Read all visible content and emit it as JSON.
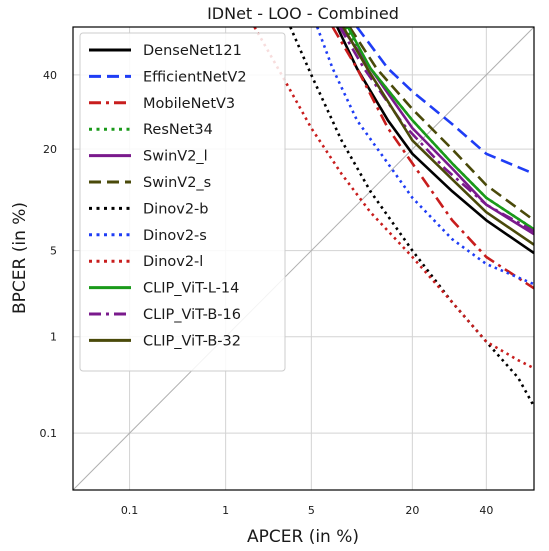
{
  "chart_data": {
    "type": "line",
    "title": "IDNet - LOO - Combined",
    "xlabel": "APCER (in %)",
    "ylabel": "BPCER (in %)",
    "xscale": "probit",
    "yscale": "probit",
    "xlim": [
      0.02,
      55
    ],
    "ylim": [
      0.02,
      55
    ],
    "xticks": [
      0.1,
      1,
      5,
      20,
      40
    ],
    "yticks": [
      0.1,
      1,
      5,
      20,
      40
    ],
    "xtick_labels": [
      "0.1",
      "1",
      "5",
      "20",
      "40"
    ],
    "ytick_labels": [
      "0.1",
      "1",
      "5",
      "20",
      "40"
    ],
    "grid": true,
    "diagonal_reference_line": true,
    "legend_position": "top-left",
    "series": [
      {
        "name": "DenseNet121",
        "color": "#000000",
        "dash": "solid",
        "points": [
          [
            7.5,
            55
          ],
          [
            10,
            42
          ],
          [
            15,
            27
          ],
          [
            20,
            19
          ],
          [
            30,
            12
          ],
          [
            40,
            8
          ],
          [
            55,
            4.8
          ]
        ]
      },
      {
        "name": "EfficientNetV2",
        "color": "#1f3df5",
        "dash": "dash",
        "points": [
          [
            10,
            55
          ],
          [
            15,
            42
          ],
          [
            20,
            35
          ],
          [
            30,
            26
          ],
          [
            40,
            19
          ],
          [
            55,
            15
          ]
        ]
      },
      {
        "name": "MobileNetV3",
        "color": "#c81d1d",
        "dash": "dashdot",
        "points": [
          [
            7,
            55
          ],
          [
            10,
            42
          ],
          [
            15,
            25
          ],
          [
            20,
            17
          ],
          [
            30,
            8
          ],
          [
            40,
            4.5
          ],
          [
            55,
            2.6
          ]
        ]
      },
      {
        "name": "ResNet34",
        "color": "#1a9a1a",
        "dash": "dot",
        "points": [
          [
            8.5,
            55
          ],
          [
            12,
            42
          ],
          [
            20,
            27
          ],
          [
            30,
            17
          ],
          [
            40,
            11
          ],
          [
            55,
            7
          ]
        ]
      },
      {
        "name": "SwinV2_l",
        "color": "#7a1a8c",
        "dash": "solid",
        "points": [
          [
            8,
            55
          ],
          [
            12,
            42
          ],
          [
            20,
            25
          ],
          [
            30,
            16
          ],
          [
            40,
            10
          ],
          [
            55,
            6.5
          ]
        ]
      },
      {
        "name": "SwinV2_s",
        "color": "#4a4a0a",
        "dash": "dash",
        "points": [
          [
            9,
            55
          ],
          [
            13,
            42
          ],
          [
            20,
            30
          ],
          [
            30,
            20
          ],
          [
            40,
            13
          ],
          [
            55,
            8
          ]
        ]
      },
      {
        "name": "Dinov2-b",
        "color": "#000000",
        "dash": "dot",
        "points": [
          [
            3.5,
            55
          ],
          [
            5,
            40
          ],
          [
            8,
            22
          ],
          [
            12,
            12
          ],
          [
            20,
            5
          ],
          [
            30,
            2
          ],
          [
            40,
            0.9
          ],
          [
            50,
            0.4
          ],
          [
            55,
            0.2
          ]
        ]
      },
      {
        "name": "Dinov2-s",
        "color": "#1f3df5",
        "dash": "dot",
        "points": [
          [
            5.5,
            55
          ],
          [
            7,
            42
          ],
          [
            10,
            27
          ],
          [
            15,
            17
          ],
          [
            20,
            11
          ],
          [
            30,
            6
          ],
          [
            40,
            4
          ],
          [
            55,
            2.8
          ]
        ]
      },
      {
        "name": "Dinov2-l",
        "color": "#c81d1d",
        "dash": "dot",
        "points": [
          [
            1.8,
            55
          ],
          [
            3,
            40
          ],
          [
            5,
            25
          ],
          [
            8,
            15
          ],
          [
            12,
            9
          ],
          [
            20,
            4.5
          ],
          [
            30,
            2
          ],
          [
            40,
            0.9
          ],
          [
            50,
            0.6
          ],
          [
            55,
            0.5
          ]
        ]
      },
      {
        "name": "CLIP_ViT-L-14",
        "color": "#1a9a1a",
        "dash": "solid",
        "points": [
          [
            8.8,
            55
          ],
          [
            12,
            42
          ],
          [
            20,
            27
          ],
          [
            30,
            17
          ],
          [
            40,
            11
          ],
          [
            55,
            7
          ]
        ]
      },
      {
        "name": "CLIP_ViT-B-16",
        "color": "#7a1a8c",
        "dash": "dashdot",
        "points": [
          [
            7.8,
            55
          ],
          [
            11,
            42
          ],
          [
            18,
            26
          ],
          [
            28,
            16
          ],
          [
            40,
            10
          ],
          [
            55,
            6.8
          ]
        ]
      },
      {
        "name": "CLIP_ViT-B-32",
        "color": "#4a4a0a",
        "dash": "solid",
        "points": [
          [
            8.2,
            55
          ],
          [
            11.5,
            42
          ],
          [
            20,
            22
          ],
          [
            30,
            14
          ],
          [
            40,
            9
          ],
          [
            55,
            5.5
          ]
        ]
      }
    ]
  }
}
